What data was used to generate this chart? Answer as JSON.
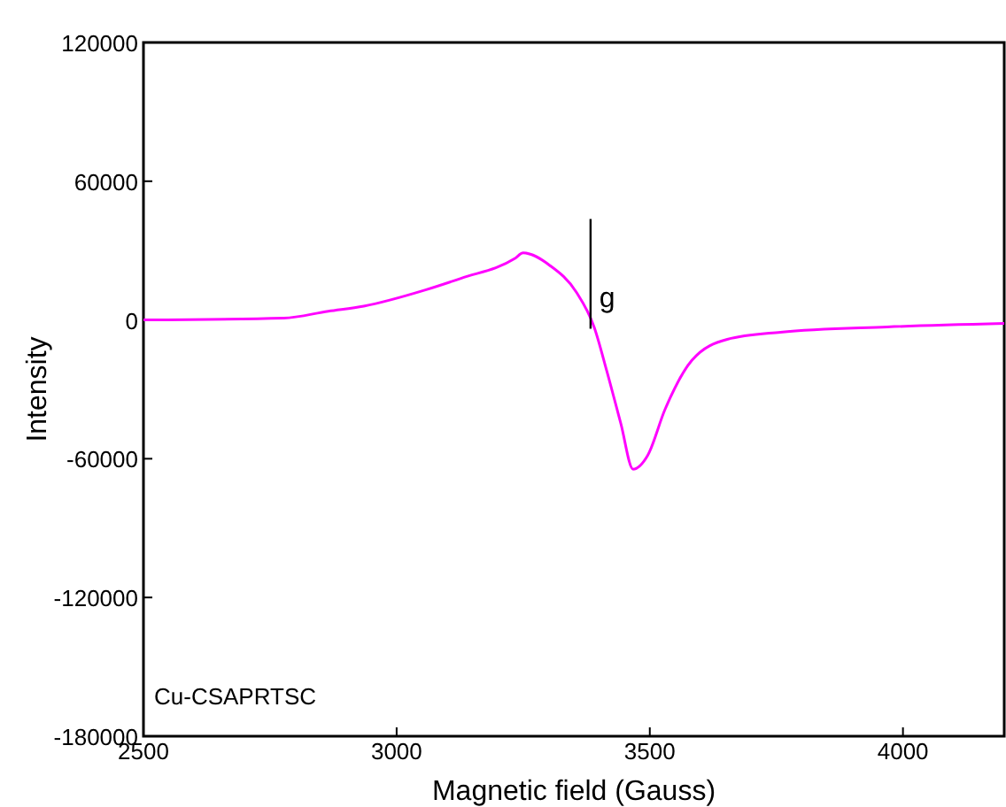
{
  "chart_data": {
    "type": "line",
    "xlabel": "Magnetic field (Gauss)",
    "ylabel": "Intensity",
    "x": [
      2500,
      2777,
      2865,
      2935,
      3057,
      3127,
      3233,
      3250,
      3303,
      3355,
      3390,
      3415,
      3443,
      3467,
      3496,
      3530,
      3583,
      3653,
      3758,
      3969,
      4200
    ],
    "series": [
      {
        "color": "#ff00ff",
        "values": [
          0,
          800,
          3800,
          6000,
          13000,
          18000,
          26500,
          29000,
          23500,
          12000,
          -3000,
          -22000,
          -45000,
          -64500,
          -58500,
          -38700,
          -17500,
          -8400,
          -5300,
          -3000,
          -1500
        ]
      }
    ],
    "xlim": [
      2500,
      4200
    ],
    "xticks": [
      2500,
      3000,
      3500,
      4000
    ],
    "ylim": [
      -180000,
      120000
    ],
    "yticks": [
      -180000,
      -120000,
      -60000,
      0,
      60000,
      120000
    ],
    "annotations": [
      "g",
      "Cu-CSAPRTSC"
    ],
    "grid": false
  }
}
